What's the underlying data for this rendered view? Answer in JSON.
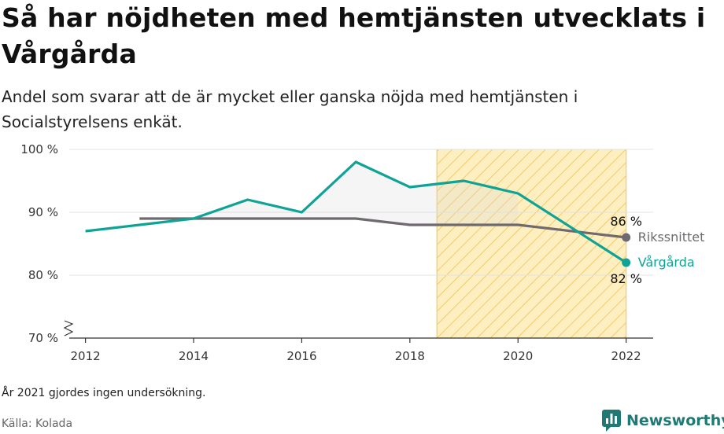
{
  "header": {
    "title": "Så har nöjdheten med hemtjänsten utvecklats i Vårgårda",
    "subtitle": "Andel som svarar att de är mycket eller ganska nöjda med hemtjänsten i Socialstyrelsens enkät."
  },
  "footer": {
    "note": "År 2021 gjordes ingen undersökning.",
    "source": "Källa: Kolada",
    "brand": "Newsworthy"
  },
  "colors": {
    "vargarda": "#0fa396",
    "riks": "#6e6a6f",
    "highlight_fill": "#fdefc0",
    "highlight_stroke": "#f5c96a"
  },
  "icons": {
    "logo": "newsworthy-chart-bubble-icon",
    "axis_break": "zigzag-axis-break-icon"
  },
  "chart_data": {
    "type": "line",
    "xlim": [
      2011.7,
      2022.5
    ],
    "ylim": [
      70,
      100
    ],
    "x_ticks": [
      2012,
      2014,
      2016,
      2018,
      2020,
      2022
    ],
    "x_tick_labels": [
      "2012",
      "2014",
      "2016",
      "2018",
      "2020",
      "2022"
    ],
    "y_ticks": [
      70,
      80,
      90,
      100
    ],
    "y_tick_labels": [
      "70 %",
      "80 %",
      "90 %",
      "100 %"
    ],
    "grid": true,
    "highlight_range": [
      2018.5,
      2022
    ],
    "series": [
      {
        "name": "Vårgårda",
        "x": [
          2012,
          2014,
          2015,
          2016,
          2017,
          2018,
          2019,
          2020,
          2022
        ],
        "y": [
          87,
          89,
          92,
          90,
          98,
          94,
          95,
          93,
          82
        ],
        "end_value_label": "82 %"
      },
      {
        "name": "Rikssnittet",
        "x": [
          2013,
          2014,
          2015,
          2016,
          2017,
          2018,
          2019,
          2020,
          2022
        ],
        "y": [
          89,
          89,
          89,
          89,
          89,
          88,
          88,
          88,
          86
        ],
        "end_value_label": "86 %"
      }
    ]
  }
}
